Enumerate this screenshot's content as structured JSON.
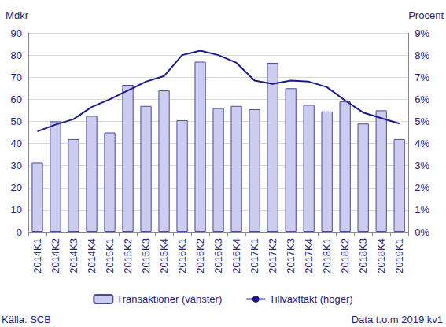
{
  "chart_data": {
    "type": "bar",
    "categories": [
      "2014K1",
      "2014K2",
      "2014K3",
      "2014K4",
      "2015K1",
      "2015K2",
      "2015K3",
      "2015K4",
      "2016K1",
      "2016K2",
      "2016K3",
      "2016K4",
      "2017K1",
      "2017K2",
      "2017K3",
      "2017K4",
      "2018K1",
      "2018K2",
      "2018K3",
      "2018K4",
      "2019K1"
    ],
    "series": [
      {
        "name": "Transaktioner (vänster)",
        "type": "bar",
        "color": "#ccccf0",
        "values": [
          31.5,
          50,
          42,
          52.5,
          45,
          66.5,
          57,
          64,
          50.5,
          77,
          56,
          57,
          55.5,
          76.5,
          65,
          57.5,
          54.5,
          59,
          49,
          55,
          42
        ]
      },
      {
        "name": "Tillväxttakt (höger)",
        "type": "line",
        "axis": "y2",
        "color": "#1a1a8c",
        "values": [
          4.55,
          4.85,
          5.1,
          5.65,
          6.0,
          6.4,
          6.8,
          7.05,
          8.0,
          8.2,
          8.0,
          7.65,
          6.85,
          6.7,
          6.85,
          6.8,
          6.55,
          5.95,
          5.4,
          5.15,
          4.9
        ]
      }
    ],
    "y_label": "Mdkr",
    "y2_label": "Procent",
    "ylim": [
      0,
      90
    ],
    "yticks": [
      0,
      10,
      20,
      30,
      40,
      50,
      60,
      70,
      80,
      90
    ],
    "y2lim": [
      0,
      9
    ],
    "y2ticks": [
      {
        "value": 0,
        "label": "0%"
      },
      {
        "value": 1,
        "label": "1%"
      },
      {
        "value": 2,
        "label": "2%"
      },
      {
        "value": 3,
        "label": "3%"
      },
      {
        "value": 4,
        "label": "4%"
      },
      {
        "value": 5,
        "label": "5%"
      },
      {
        "value": 6,
        "label": "6%"
      },
      {
        "value": 7,
        "label": "7%"
      },
      {
        "value": 8,
        "label": "8%"
      },
      {
        "value": 9,
        "label": "9%"
      }
    ],
    "grid": true,
    "legend": "bottom",
    "source": "Källa: SCB",
    "note": "Data t.o.m 2019 kv1"
  }
}
